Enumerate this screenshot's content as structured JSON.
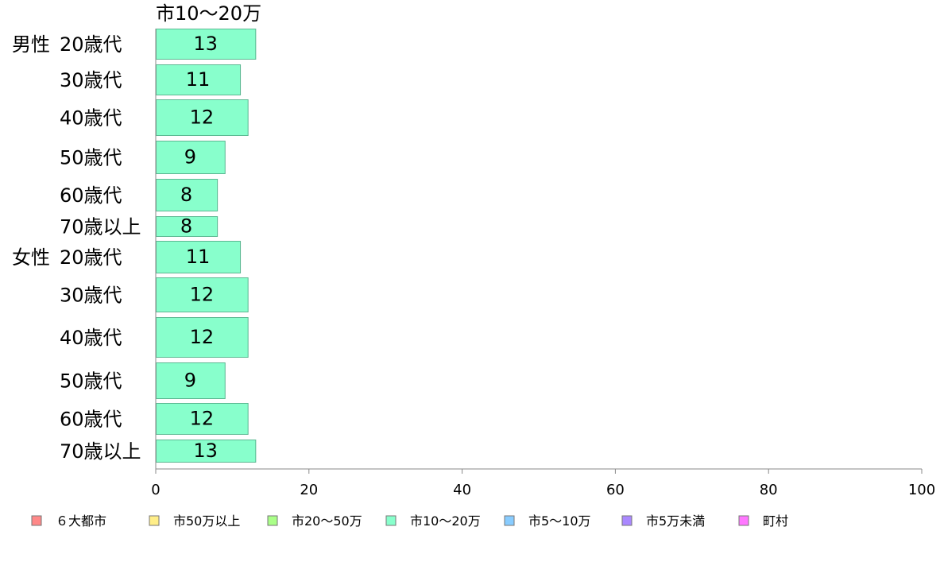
{
  "chart_data": {
    "type": "bar",
    "orientation": "horizontal",
    "series_label_above": "市10〜20万",
    "groups": [
      {
        "name": "男性",
        "rows": [
          {
            "category": "20歳代",
            "value": 13
          },
          {
            "category": "30歳代",
            "value": 11
          },
          {
            "category": "40歳代",
            "value": 12
          },
          {
            "category": "50歳代",
            "value": 9
          },
          {
            "category": "60歳代",
            "value": 8
          },
          {
            "category": "70歳以上",
            "value": 8
          }
        ]
      },
      {
        "name": "女性",
        "rows": [
          {
            "category": "20歳代",
            "value": 11
          },
          {
            "category": "30歳代",
            "value": 12
          },
          {
            "category": "40歳代",
            "value": 12
          },
          {
            "category": "50歳代",
            "value": 9
          },
          {
            "category": "60歳代",
            "value": 12
          },
          {
            "category": "70歳以上",
            "value": 13
          }
        ]
      }
    ],
    "xlim": [
      0,
      100
    ],
    "xticks": [
      0,
      20,
      40,
      60,
      80,
      100
    ],
    "grid": false,
    "bar_color": "#88ffcc",
    "legend_position": "bottom",
    "legend": [
      {
        "label": "６大都市",
        "color": "#ff8888"
      },
      {
        "label": "市50万以上",
        "color": "#ffee88"
      },
      {
        "label": "市20〜50万",
        "color": "#aaff88"
      },
      {
        "label": "市10〜20万",
        "color": "#88ffcc"
      },
      {
        "label": "市5〜10万",
        "color": "#88ccff"
      },
      {
        "label": "市5万未満",
        "color": "#aa88ff"
      },
      {
        "label": "町村",
        "color": "#ff77ff"
      }
    ]
  }
}
